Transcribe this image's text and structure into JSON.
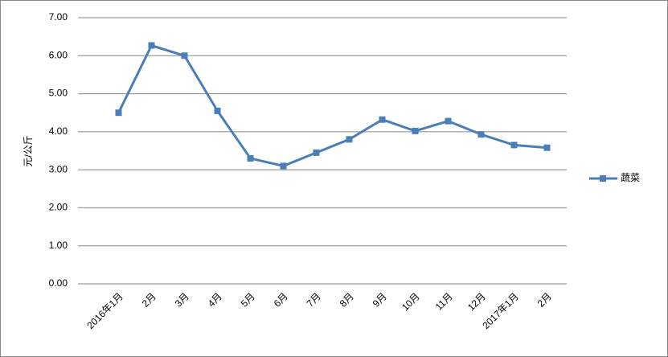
{
  "chart_data": {
    "type": "line",
    "y_label": "元/公斤",
    "categories": [
      "2016年1月",
      "2月",
      "3月",
      "4月",
      "5月",
      "6月",
      "7月",
      "8月",
      "9月",
      "10月",
      "11月",
      "12月",
      "2017年1月",
      "2月"
    ],
    "series": [
      {
        "name": "蔬菜",
        "color": "#4a7ebb",
        "values": [
          4.5,
          6.27,
          6.0,
          4.55,
          3.3,
          3.1,
          3.45,
          3.8,
          4.32,
          4.02,
          4.28,
          3.93,
          3.65,
          3.58
        ]
      }
    ],
    "ylim": [
      0,
      7
    ],
    "yticks": [
      {
        "value": 0,
        "label": "0.00"
      },
      {
        "value": 1,
        "label": "1.00"
      },
      {
        "value": 2,
        "label": "2.00"
      },
      {
        "value": 3,
        "label": "3.00"
      },
      {
        "value": 4,
        "label": "4.00"
      },
      {
        "value": 5,
        "label": "5.00"
      },
      {
        "value": 6,
        "label": "6.00"
      },
      {
        "value": 7,
        "label": "7.00"
      }
    ],
    "grid": true,
    "legend": "right"
  }
}
